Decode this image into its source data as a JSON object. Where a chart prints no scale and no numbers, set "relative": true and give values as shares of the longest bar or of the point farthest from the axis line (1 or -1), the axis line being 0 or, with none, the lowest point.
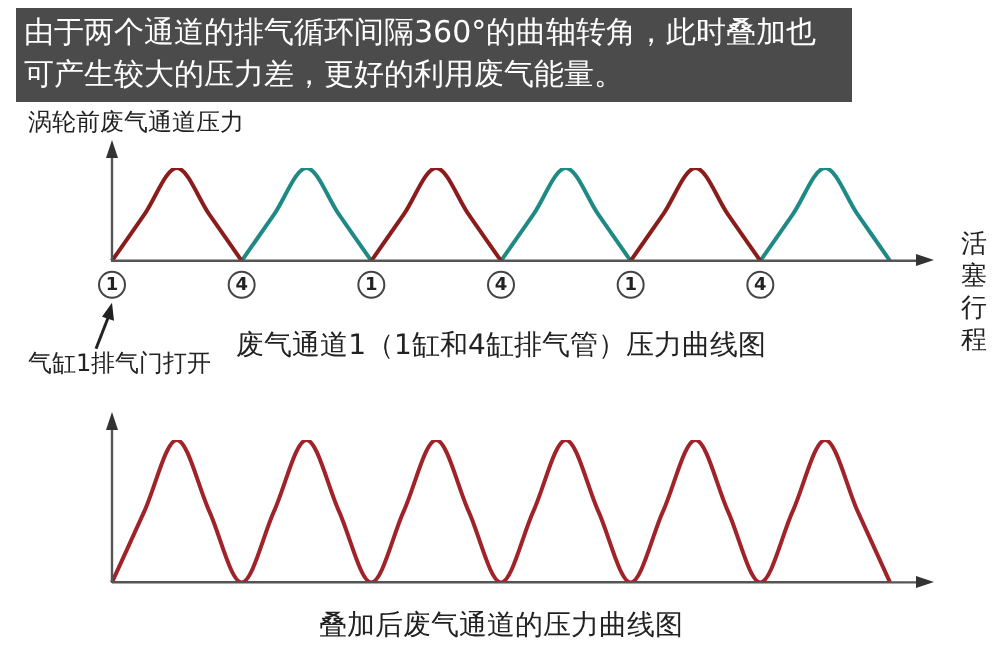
{
  "chart_data": [
    {
      "type": "line",
      "relative": true,
      "title": "废气通道1（1缸和4缸排气管）压力曲线图",
      "ylabel": "涡轮前废气通道压力",
      "xlabel": "活塞行程",
      "annotations": [
        "由于两个通道的排气循环间隔360°的曲轴转角，此时叠加也可产生较大的压力差，更好的利用废气能量。",
        "气缸1排气门打开"
      ],
      "categories": [
        "1",
        null,
        null,
        null,
        "4",
        null,
        null,
        null,
        "1",
        null,
        null,
        null,
        "4",
        null,
        null,
        null,
        "1",
        null,
        null,
        null,
        "4",
        null,
        null,
        null,
        null
      ],
      "series": [
        {
          "color": "#8b1c1c",
          "values": [
            0,
            0.5,
            1,
            0.5,
            0,
            null,
            null,
            null,
            0,
            0.5,
            1,
            0.5,
            0,
            null,
            null,
            null,
            0,
            0.5,
            1,
            0.5,
            0,
            null,
            null,
            null,
            null
          ]
        },
        {
          "color": "#1f8a84",
          "values": [
            null,
            null,
            null,
            null,
            0,
            0.5,
            1,
            0.5,
            0,
            null,
            null,
            null,
            0,
            0.5,
            1,
            0.5,
            0,
            null,
            null,
            null,
            0,
            0.5,
            1,
            0.5,
            0
          ]
        }
      ],
      "grid": false,
      "legend": false,
      "tick_labels": "x"
    },
    {
      "type": "line",
      "relative": true,
      "title": "叠加后废气通道的压力曲线图",
      "categories": [
        null,
        null,
        null,
        null,
        null,
        null,
        null,
        null,
        null,
        null,
        null,
        null,
        null,
        null,
        null,
        null,
        null,
        null,
        null,
        null,
        null,
        null,
        null,
        null,
        null
      ],
      "series": [
        {
          "color": "#a0232a",
          "values": [
            0,
            0.5,
            1,
            0.5,
            0,
            0.5,
            1,
            0.5,
            0,
            0.5,
            1,
            0.5,
            0,
            0.5,
            1,
            0.5,
            0,
            0.5,
            1,
            0.5,
            0,
            0.5,
            1,
            0.5,
            0
          ]
        }
      ],
      "grid": false,
      "legend": false,
      "tick_labels": false
    }
  ]
}
